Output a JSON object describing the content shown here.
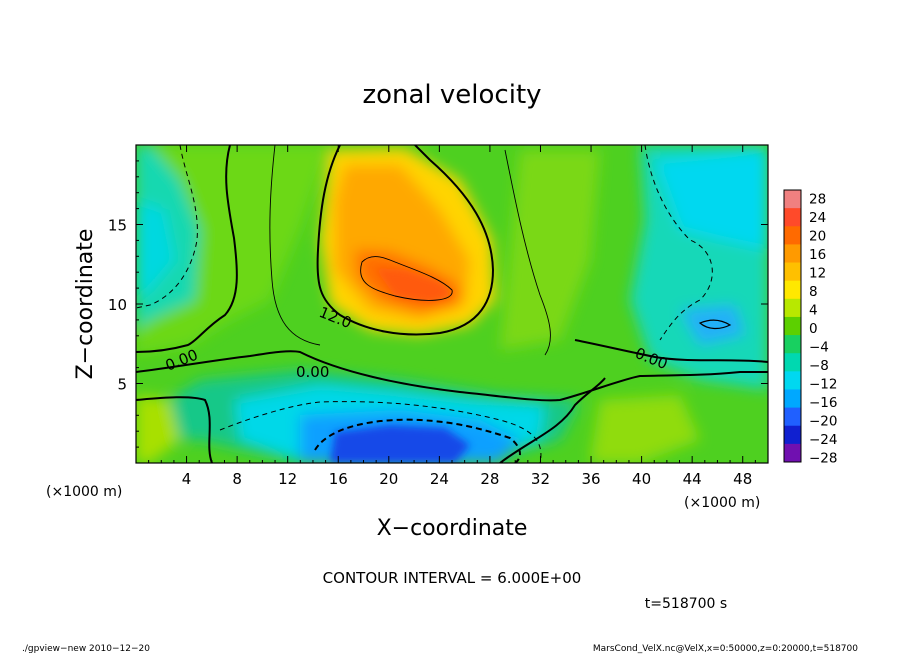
{
  "chart_data": {
    "type": "heatmap",
    "title": "zonal velocity",
    "xlabel": "X−coordinate",
    "ylabel": "Z−coordinate",
    "x_unit_left": "(×1000 m)",
    "x_unit_right": "(×1000 m)",
    "xlim": [
      0,
      50
    ],
    "ylim": [
      0,
      20
    ],
    "x_ticks": [
      4,
      8,
      12,
      16,
      20,
      24,
      28,
      32,
      36,
      40,
      44,
      48
    ],
    "x_tick_labels": [
      "4",
      "8",
      "12",
      "16",
      "20",
      "24",
      "28",
      "32",
      "36",
      "40",
      "44",
      "48"
    ],
    "y_ticks": [
      5,
      10,
      15
    ],
    "y_tick_labels": [
      "5",
      "10",
      "15"
    ],
    "colorbar": {
      "levels": [
        28,
        24,
        20,
        16,
        12,
        8,
        4,
        0,
        -4,
        -8,
        -12,
        -16,
        -20,
        -24,
        -28
      ],
      "labels": [
        "28",
        "24",
        "20",
        "16",
        "12",
        "8",
        "4",
        "0",
        "−4",
        "−8",
        "−12",
        "−16",
        "−20",
        "−24",
        "−28"
      ],
      "colors": [
        "#f08080",
        "#ff4a2a",
        "#ff6a00",
        "#ff9a00",
        "#ffc000",
        "#ffe800",
        "#b8e800",
        "#5cd000",
        "#18d060",
        "#00d8b0",
        "#00d8f0",
        "#00a8ff",
        "#2060ff",
        "#1020d0",
        "#7010b0"
      ]
    },
    "contour_labels": [
      {
        "text": "12.0",
        "x": 15.3,
        "y": 9.7
      },
      {
        "text": "0.00",
        "x": 4.0,
        "y": 6.8
      },
      {
        "text": "0.00",
        "x": 14.7,
        "y": 5.6
      },
      {
        "text": "0.00",
        "x": 41.0,
        "y": 6.5
      }
    ],
    "features": [
      {
        "name": "jet-max",
        "x": 22,
        "y": 11.5,
        "value": 22
      },
      {
        "name": "jet-core",
        "x": 21,
        "y": 13,
        "value": 15
      },
      {
        "name": "low-min",
        "x": 22,
        "y": 1.2,
        "value": -20
      },
      {
        "name": "cyan-right",
        "x": 45.5,
        "y": 8.8,
        "value": -10
      },
      {
        "name": "cyan-left",
        "x": 2.5,
        "y": 13,
        "value": -7
      }
    ],
    "contour_interval_text": "CONTOUR INTERVAL = 6.000E+00",
    "time_text": "t=518700 s"
  },
  "footer": {
    "left": "./gpview−new   2010−12−20",
    "right": "MarsCond_VelX.nc@VelX,x=0:50000,z=0:20000,t=518700"
  }
}
